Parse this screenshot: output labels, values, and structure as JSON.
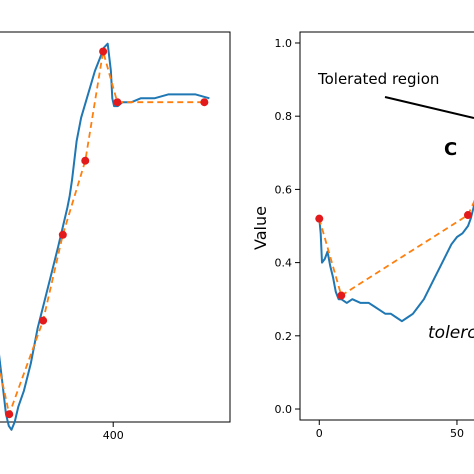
{
  "colors": {
    "signal": "#1f77b4",
    "approx": "#ff7f0e",
    "point": "#e31a1c",
    "text": "#000000"
  },
  "chart_data": [
    {
      "type": "line",
      "title": "",
      "xlabel": "",
      "ylabel": "",
      "x_ticks": [
        400
      ],
      "xlim": [
        131,
        655
      ],
      "ylim": [
        0.0,
        1.0
      ],
      "grid": false,
      "series": [
        {
          "style": "solid",
          "x": [
            145,
            150,
            158,
            166,
            172,
            178,
            185,
            193,
            205,
            220,
            235,
            250,
            265,
            280,
            290,
            300,
            305,
            310,
            315,
            320,
            330,
            340,
            350,
            360,
            370,
            380,
            388,
            395,
            398,
            402,
            405,
            410,
            420,
            440,
            460,
            490,
            520,
            550,
            580,
            610
          ],
          "y": [
            0.24,
            0.18,
            0.1,
            0.02,
            -0.01,
            -0.02,
            0.0,
            0.04,
            0.08,
            0.15,
            0.24,
            0.31,
            0.38,
            0.45,
            0.5,
            0.55,
            0.58,
            0.62,
            0.67,
            0.72,
            0.78,
            0.82,
            0.86,
            0.9,
            0.93,
            0.96,
            0.97,
            0.9,
            0.83,
            0.81,
            0.81,
            0.81,
            0.82,
            0.82,
            0.83,
            0.83,
            0.84,
            0.84,
            0.84,
            0.83
          ]
        },
        {
          "style": "dashed",
          "x": [
            131,
            173,
            247,
            290,
            339,
            378,
            409,
            599
          ],
          "y": [
            0.25,
            0.02,
            0.26,
            0.48,
            0.67,
            0.95,
            0.82,
            0.82
          ]
        }
      ]
    },
    {
      "type": "line",
      "title": "",
      "xlabel": "",
      "ylabel": "Value",
      "x_ticks": [
        0,
        50
      ],
      "y_ticks": [
        "0.0",
        "0.2",
        "0.4",
        "0.6",
        "0.8",
        "1.0"
      ],
      "xlim": [
        -7,
        62
      ],
      "ylim": [
        -0.03,
        1.03
      ],
      "grid": false,
      "annotations": [
        "Tolerated region",
        "C",
        "tolerc"
      ],
      "series": [
        {
          "style": "solid",
          "x": [
            0,
            0.5,
            1,
            2,
            3,
            4,
            5,
            6,
            7,
            8,
            10,
            12,
            15,
            18,
            20,
            22,
            24,
            26,
            28,
            30,
            32,
            34,
            36,
            38,
            40,
            42,
            44,
            46,
            48,
            50,
            52,
            54,
            55,
            56,
            57,
            58,
            59,
            60
          ],
          "y": [
            0.52,
            0.48,
            0.4,
            0.41,
            0.43,
            0.39,
            0.36,
            0.32,
            0.3,
            0.3,
            0.29,
            0.3,
            0.29,
            0.29,
            0.28,
            0.27,
            0.26,
            0.26,
            0.25,
            0.24,
            0.25,
            0.26,
            0.28,
            0.3,
            0.33,
            0.36,
            0.39,
            0.42,
            0.45,
            0.47,
            0.48,
            0.5,
            0.52,
            0.55,
            0.59,
            0.63,
            0.66,
            0.68
          ]
        },
        {
          "style": "dashed",
          "x": [
            0,
            8,
            54,
            62
          ],
          "y": [
            0.52,
            0.31,
            0.53,
            0.66
          ]
        }
      ]
    }
  ]
}
